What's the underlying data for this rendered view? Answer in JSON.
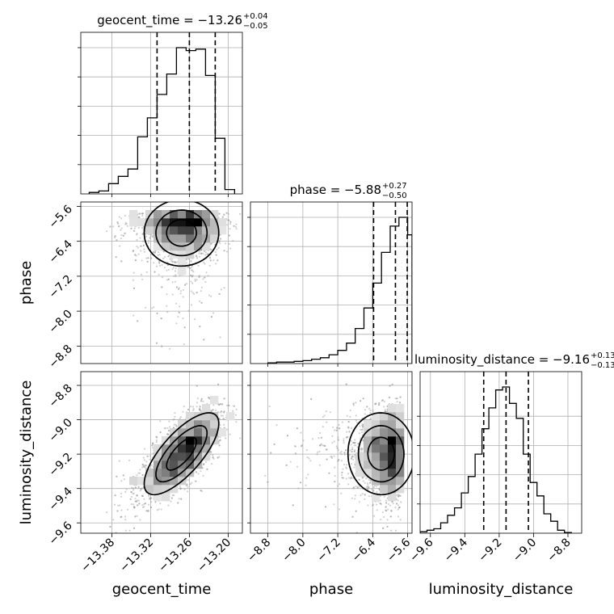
{
  "chart_data": {
    "type": "corner",
    "parameters": [
      {
        "name": "geocent_time",
        "title_prefix": "geocent_time = ",
        "median": "−13.26",
        "plus": "+0.04",
        "minus": "−0.05",
        "quantiles": [
          -13.31,
          -13.26,
          -13.22
        ],
        "range": [
          -13.428,
          -13.178
        ],
        "ticks": [
          -13.38,
          -13.32,
          -13.26,
          -13.2
        ],
        "tick_labels": [
          "−13.38",
          "−13.32",
          "−13.26",
          "−13.20"
        ],
        "hist_edges": [
          -13.415,
          -13.4,
          -13.385,
          -13.37,
          -13.355,
          -13.34,
          -13.325,
          -13.31,
          -13.295,
          -13.28,
          -13.265,
          -13.25,
          -13.235,
          -13.22,
          -13.205,
          -13.19
        ],
        "hist_counts": [
          1,
          2,
          7,
          12,
          17,
          39,
          52,
          68,
          82,
          100,
          98,
          99,
          81,
          38,
          3
        ],
        "hist_tail_edges": [
          -13.205,
          -13.19
        ],
        "y_ticks": [
          0.2,
          0.4,
          0.6,
          0.8,
          1.0
        ]
      },
      {
        "name": "phase",
        "title_prefix": "phase = ",
        "median": "−5.88",
        "plus": "+0.27",
        "minus": "−0.50",
        "quantiles": [
          -6.38,
          -5.88,
          -5.61
        ],
        "range": [
          -9.2,
          -5.5
        ],
        "ticks": [
          -8.8,
          -8.0,
          -7.2,
          -6.4,
          -5.6
        ],
        "tick_labels": [
          "−8.8",
          "−8.0",
          "−7.2",
          "−6.4",
          "−5.6"
        ],
        "hist_edges": [
          -8.8,
          -8.6,
          -8.4,
          -8.2,
          -8.0,
          -7.8,
          -7.6,
          -7.4,
          -7.2,
          -7.0,
          -6.8,
          -6.6,
          -6.4,
          -6.2,
          -6.0,
          -5.8,
          -5.6,
          -5.5
        ],
        "hist_counts": [
          0.5,
          1,
          1,
          1.5,
          2,
          3,
          4,
          6,
          9,
          14,
          24,
          38,
          55,
          76,
          94,
          100,
          88
        ],
        "y_ticks": [
          0.2,
          0.4,
          0.6,
          0.8,
          1.0
        ]
      },
      {
        "name": "luminosity_distance",
        "title_prefix": "luminosity_distance = ",
        "median": "−9.16",
        "plus": "+0.13",
        "minus": "−0.13",
        "quantiles": [
          -9.29,
          -9.16,
          -9.03
        ],
        "range": [
          -9.66,
          -8.72
        ],
        "ticks": [
          -9.6,
          -9.4,
          -9.2,
          -9.0,
          -8.8
        ],
        "tick_labels": [
          "−9.6",
          "−9.4",
          "−9.2",
          "−9.0",
          "−8.8"
        ],
        "hist_edges": [
          -9.66,
          -9.62,
          -9.58,
          -9.54,
          -9.5,
          -9.46,
          -9.42,
          -9.38,
          -9.34,
          -9.3,
          -9.26,
          -9.22,
          -9.18,
          -9.14,
          -9.1,
          -9.06,
          -9.02,
          -8.98,
          -8.94,
          -8.9,
          -8.86,
          -8.82,
          -8.78
        ],
        "hist_counts": [
          1,
          2,
          3,
          7,
          12,
          17,
          27,
          38,
          53,
          70,
          84,
          96,
          98,
          87,
          77,
          53,
          34,
          25,
          13,
          8,
          2,
          0.5
        ],
        "y_ticks": [
          0.2,
          0.4,
          0.6,
          0.8
        ]
      }
    ],
    "grid": true,
    "contour_levels": 3,
    "scatter": "gray density points with grayscale 2D histogram"
  }
}
